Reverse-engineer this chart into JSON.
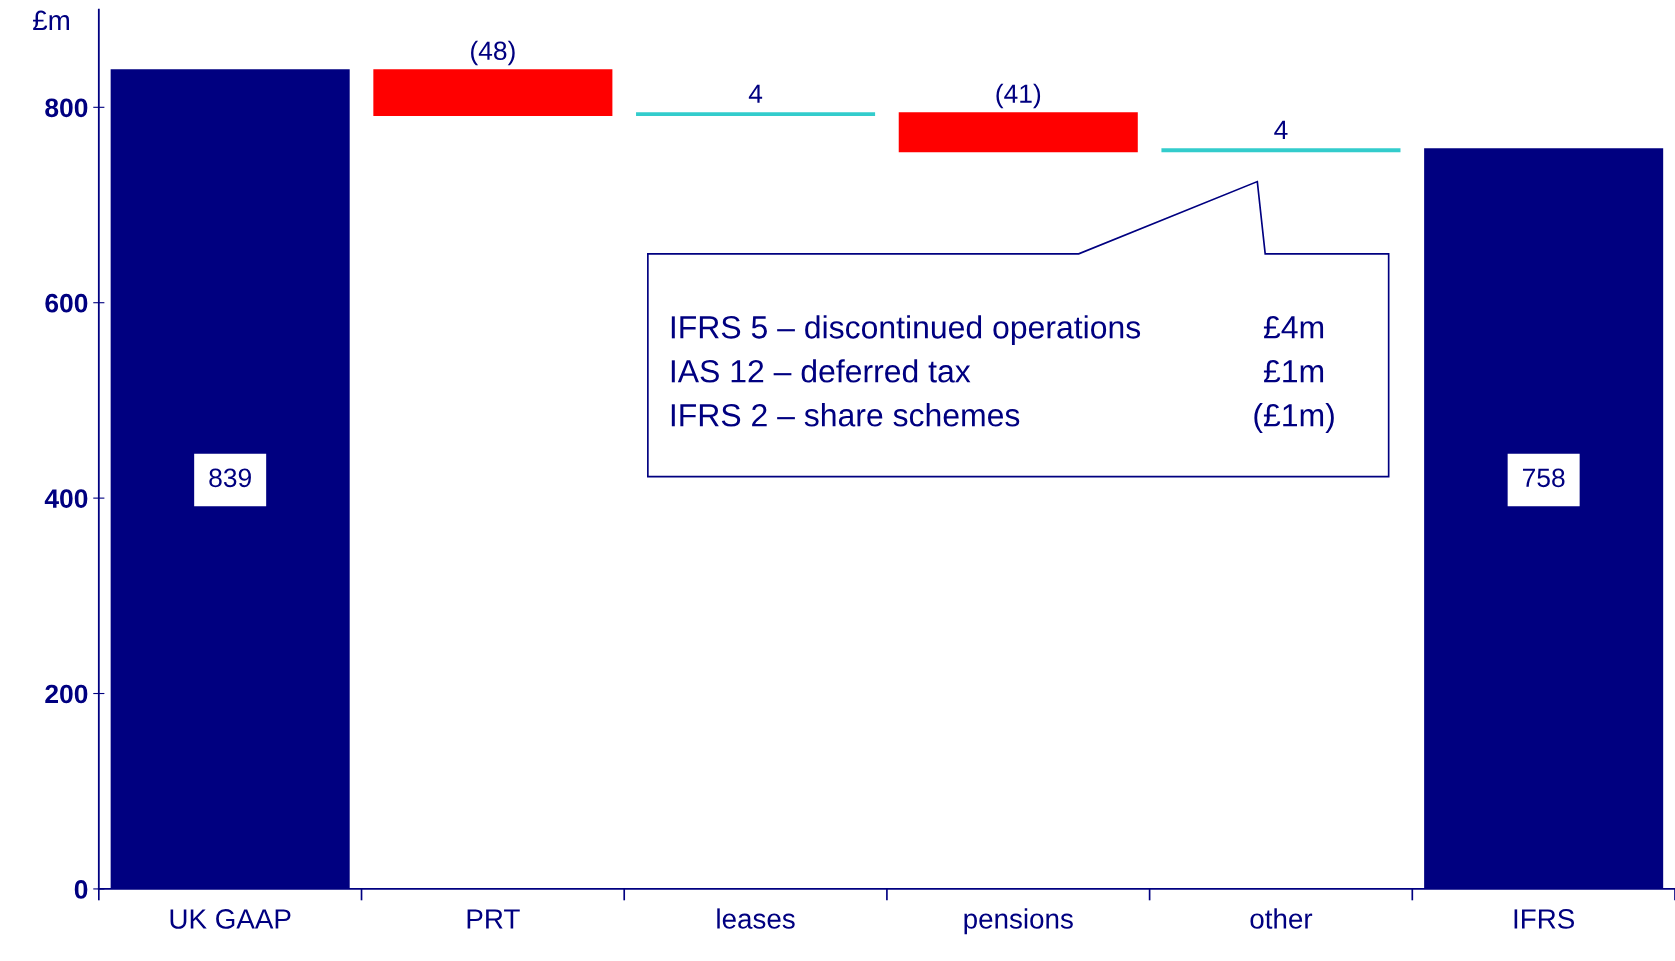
{
  "chart_data": {
    "type": "bar",
    "ylabel": "£m",
    "categories": [
      "UK GAAP",
      "PRT",
      "leases",
      "pensions",
      "other",
      "IFRS"
    ],
    "values": [
      839,
      -48,
      4,
      -41,
      4,
      758
    ],
    "base": [
      0,
      839,
      791,
      795,
      754,
      0
    ],
    "colors": [
      "#000080",
      "#ff0000",
      "#33cccc",
      "#ff0000",
      "#33cccc",
      "#000080"
    ],
    "value_labels": [
      "839",
      "(48)",
      "4",
      "(41)",
      "4",
      "758"
    ],
    "ylim": [
      0,
      900
    ],
    "yticks": [
      0,
      200,
      400,
      600,
      800
    ],
    "grid": false,
    "annotations": [
      "IFRS 5 – discontinued operations",
      "£4m",
      "IAS 12 – deferred tax",
      "£1m",
      "IFRS 2 – share schemes",
      "(£1m)"
    ]
  }
}
